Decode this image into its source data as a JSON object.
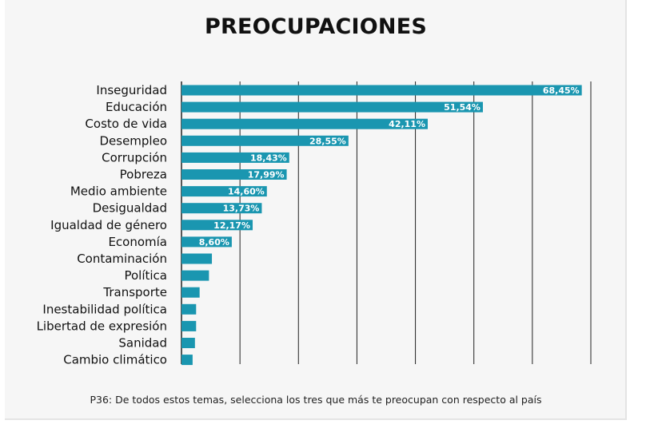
{
  "chart_data": {
    "type": "bar",
    "orientation": "horizontal",
    "title": "PREOCUPACIONES",
    "categories": [
      "Inseguridad",
      "Educación",
      "Costo de vida",
      "Desempleo",
      "Corrupción",
      "Pobreza",
      "Medio ambiente",
      "Desigualdad",
      "Igualdad de género",
      "Economía",
      "Contaminación",
      "Política",
      "Transporte",
      "Inestabilidad política",
      "Libertad de expresión",
      "Sanidad",
      "Cambio climático"
    ],
    "values": [
      68.45,
      51.54,
      42.11,
      28.55,
      18.43,
      17.99,
      14.6,
      13.73,
      12.17,
      8.6,
      5.2,
      4.7,
      3.1,
      2.5,
      2.5,
      2.3,
      1.9
    ],
    "data_labels": [
      "68,45%",
      "51,54%",
      "42,11%",
      "28,55%",
      "18,43%",
      "17,99%",
      "14,60%",
      "13,73%",
      "12,17%",
      "8,60%",
      "",
      "",
      "",
      "",
      "",
      "",
      ""
    ],
    "xlim": [
      0,
      70
    ],
    "grid": true,
    "bar_color": "#1a96b0",
    "footnote": "P36: De todos estos temas, selecciona los tres que más te preocupan con respecto al país"
  }
}
